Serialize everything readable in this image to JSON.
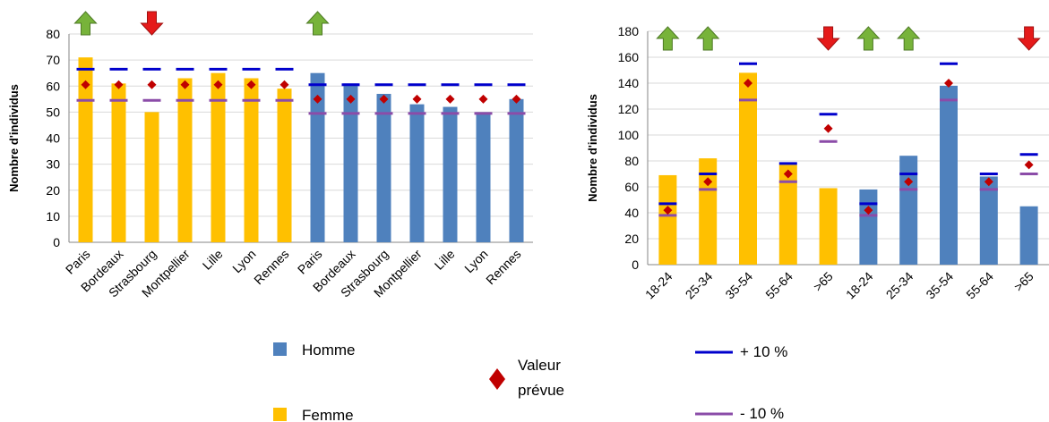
{
  "legend": {
    "homme": "Homme",
    "femme": "Femme",
    "valeur_line1": "Valeur",
    "valeur_line2": "prévue",
    "plus10": "+ 10 %",
    "minus10": "- 10 %"
  },
  "colors": {
    "homme": "#4F81BD",
    "femme": "#FFC000",
    "expected": "#C00000",
    "plus10": "#0000CC",
    "minus10": "#8B4CA8",
    "arrow_up": "#77B33A",
    "arrow_down": "#E51A1A"
  },
  "chart_data": [
    {
      "type": "bar",
      "ylabel": "Nombre d'individus",
      "ylim": [
        0,
        80
      ],
      "yticks": [
        0,
        10,
        20,
        30,
        40,
        50,
        60,
        70,
        80
      ],
      "grid": true,
      "categories": [
        "Paris",
        "Bordeaux",
        "Strasbourg",
        "Montpellier",
        "Lille",
        "Lyon",
        "Rennes",
        "Paris",
        "Bordeaux",
        "Strasbourg",
        "Montpellier",
        "Lille",
        "Lyon",
        "Rennes"
      ],
      "series_of_bar": [
        "Femme",
        "Femme",
        "Femme",
        "Femme",
        "Femme",
        "Femme",
        "Femme",
        "Homme",
        "Homme",
        "Homme",
        "Homme",
        "Homme",
        "Homme",
        "Homme"
      ],
      "values": [
        71,
        61,
        50,
        63,
        65,
        63,
        59,
        65,
        61,
        57,
        53,
        52,
        50,
        55
      ],
      "expected": [
        60.5,
        60.5,
        60.5,
        60.5,
        60.5,
        60.5,
        60.5,
        55,
        55,
        55,
        55,
        55,
        55,
        55
      ],
      "plus10": [
        66.5,
        66.5,
        66.5,
        66.5,
        66.5,
        66.5,
        66.5,
        60.5,
        60.5,
        60.5,
        60.5,
        60.5,
        60.5,
        60.5
      ],
      "minus10": [
        54.5,
        54.5,
        54.5,
        54.5,
        54.5,
        54.5,
        54.5,
        49.5,
        49.5,
        49.5,
        49.5,
        49.5,
        49.5,
        49.5
      ],
      "arrows": [
        "up",
        "",
        "down",
        "",
        "",
        "",
        "",
        "up",
        "",
        "",
        "",
        "",
        "",
        ""
      ]
    },
    {
      "type": "bar",
      "ylabel": "Nombre d'individus",
      "ylim": [
        0,
        180
      ],
      "yticks": [
        0,
        20,
        40,
        60,
        80,
        100,
        120,
        140,
        160,
        180
      ],
      "grid": true,
      "categories": [
        "18-24",
        "25-34",
        "35-54",
        "55-64",
        ">65",
        "18-24",
        "25-34",
        "35-54",
        "55-64",
        ">65"
      ],
      "series_of_bar": [
        "Femme",
        "Femme",
        "Femme",
        "Femme",
        "Femme",
        "Homme",
        "Homme",
        "Homme",
        "Homme",
        "Homme"
      ],
      "values": [
        69,
        82,
        148,
        77,
        59,
        58,
        84,
        138,
        68,
        45
      ],
      "expected": [
        42,
        64,
        140,
        70,
        105,
        42,
        64,
        140,
        64,
        77
      ],
      "plus10": [
        47,
        70,
        155,
        78,
        116,
        47,
        70,
        155,
        70,
        85
      ],
      "minus10": [
        38,
        58,
        127,
        64,
        95,
        38,
        58,
        127,
        58,
        70
      ],
      "arrows": [
        "up",
        "up",
        "",
        "",
        "down",
        "up",
        "up",
        "",
        "",
        "down"
      ]
    }
  ]
}
